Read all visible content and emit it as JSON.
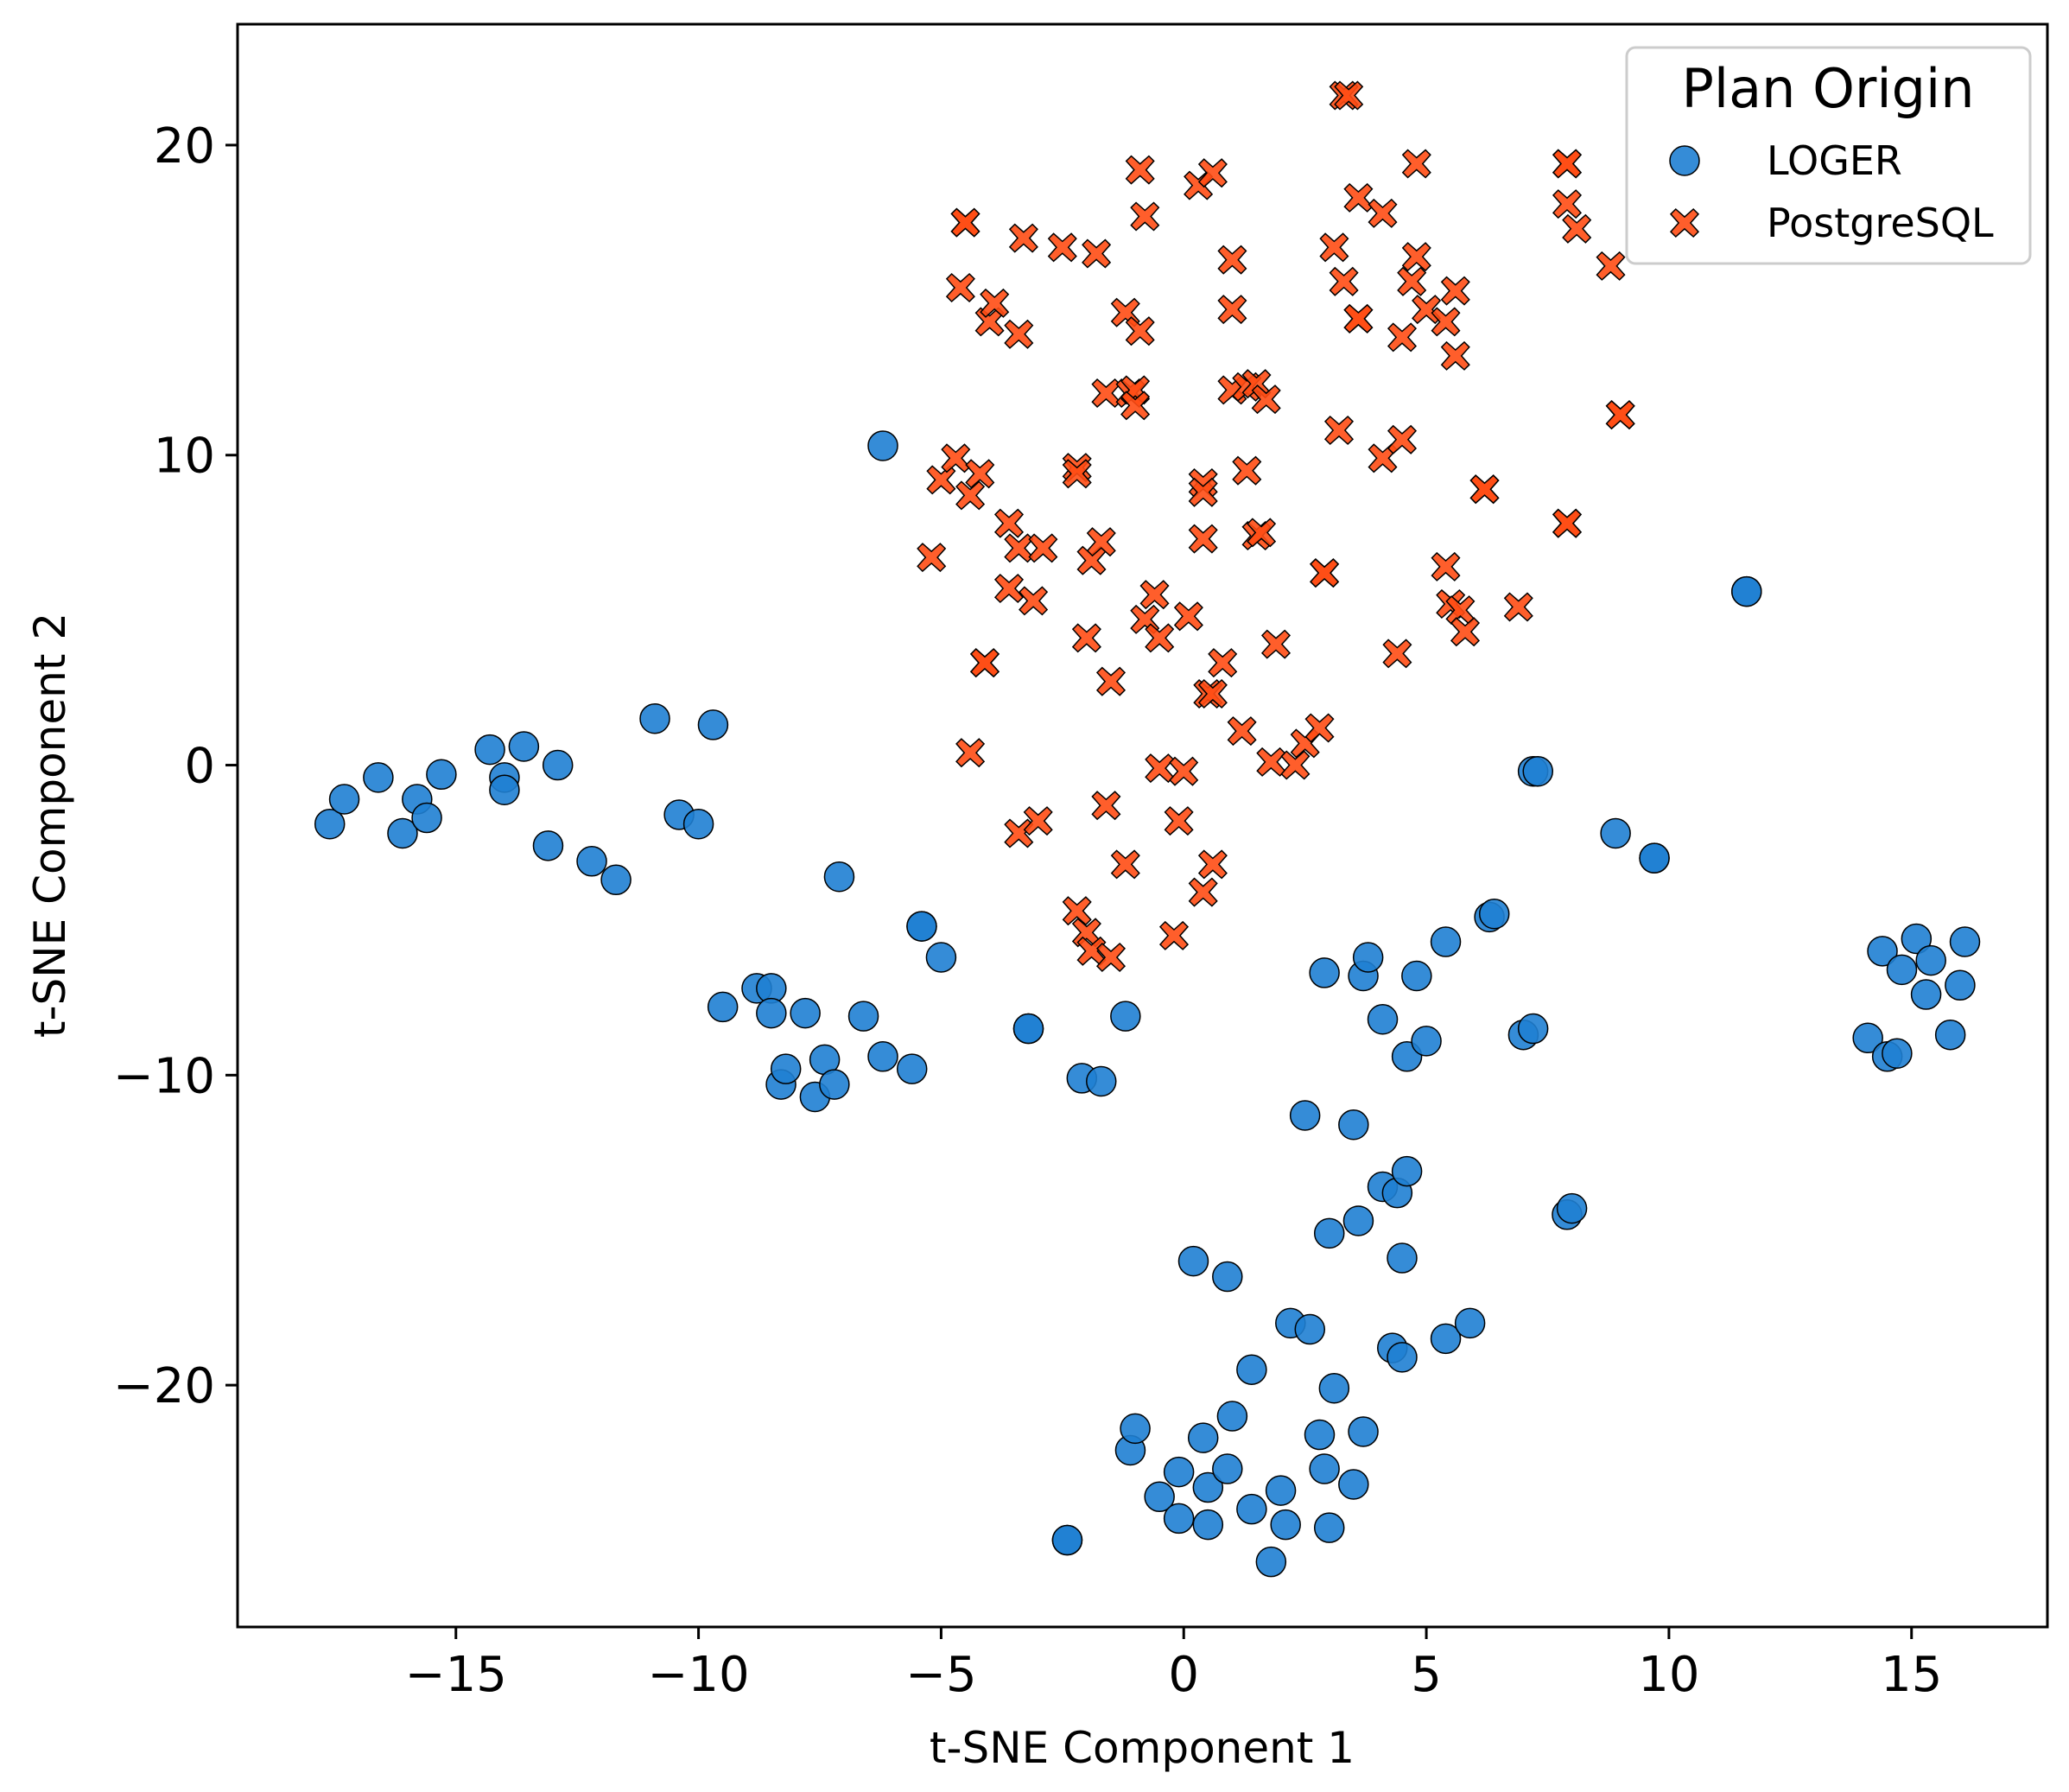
{
  "chart_data": {
    "type": "scatter",
    "xlabel": "t-SNE Component 1",
    "ylabel": "t-SNE Component 2",
    "xlim": [
      -19.5,
      17.8
    ],
    "ylim": [
      -27.8,
      23.9
    ],
    "x_ticks": [
      -15,
      -10,
      -5,
      0,
      5,
      10,
      15
    ],
    "y_ticks": [
      -20,
      -10,
      0,
      10,
      20
    ],
    "x_tick_labels": [
      "−15",
      "−10",
      "−5",
      "0",
      "5",
      "10",
      "15"
    ],
    "y_tick_labels": [
      "−20",
      "−10",
      "0",
      "10",
      "20"
    ],
    "grid": false,
    "legend": {
      "title": "Plan Origin",
      "placement": "top-right",
      "entries": [
        "LOGER",
        "PostgreSQL"
      ]
    },
    "colors": {
      "LOGER": "#1f7fd3",
      "PostgreSQL": "#ff4d14",
      "edge": "#000000"
    },
    "series": [
      {
        "name": "LOGER",
        "marker": "circle",
        "points": [
          [
            -17.6,
            -1.9
          ],
          [
            -17.3,
            -1.1
          ],
          [
            -16.6,
            -0.4
          ],
          [
            -16.1,
            -2.2
          ],
          [
            -15.8,
            -1.1
          ],
          [
            -15.6,
            -1.7
          ],
          [
            -15.3,
            -0.3
          ],
          [
            -14.3,
            0.5
          ],
          [
            -14.0,
            -0.4
          ],
          [
            -14.0,
            -0.8
          ],
          [
            -13.6,
            0.6
          ],
          [
            -13.1,
            -2.6
          ],
          [
            -12.9,
            0.0
          ],
          [
            -12.2,
            -3.1
          ],
          [
            -11.7,
            -3.7
          ],
          [
            -10.9,
            1.5
          ],
          [
            -10.4,
            -1.6
          ],
          [
            -10.0,
            -1.9
          ],
          [
            -9.7,
            1.3
          ],
          [
            -9.5,
            -7.8
          ],
          [
            -8.8,
            -7.2
          ],
          [
            -8.5,
            -7.2
          ],
          [
            -8.5,
            -8.0
          ],
          [
            -8.3,
            -10.3
          ],
          [
            -8.2,
            -9.8
          ],
          [
            -7.8,
            -8.0
          ],
          [
            -7.4,
            -9.5
          ],
          [
            -7.6,
            -10.7
          ],
          [
            -7.2,
            -10.3
          ],
          [
            -7.1,
            -3.6
          ],
          [
            -6.6,
            -8.1
          ],
          [
            -6.2,
            -9.4
          ],
          [
            -5.6,
            -9.8
          ],
          [
            -6.2,
            10.3
          ],
          [
            -5.4,
            -5.2
          ],
          [
            -5.4,
            -5.2
          ],
          [
            -5.0,
            -6.2
          ],
          [
            -3.2,
            -8.5
          ],
          [
            -3.2,
            -8.5
          ],
          [
            -2.1,
            -10.1
          ],
          [
            -1.7,
            -10.2
          ],
          [
            -1.2,
            -8.1
          ],
          [
            -2.4,
            -25.0
          ],
          [
            -2.4,
            -25.0
          ],
          [
            -1.1,
            -22.1
          ],
          [
            -1.0,
            -21.4
          ],
          [
            -0.5,
            -23.6
          ],
          [
            -0.1,
            -22.8
          ],
          [
            -0.1,
            -24.3
          ],
          [
            0.2,
            -16.0
          ],
          [
            0.4,
            -21.7
          ],
          [
            0.5,
            -23.3
          ],
          [
            0.5,
            -24.5
          ],
          [
            0.9,
            -16.5
          ],
          [
            0.9,
            -22.7
          ],
          [
            1.0,
            -21.0
          ],
          [
            1.4,
            -24.0
          ],
          [
            1.4,
            -19.5
          ],
          [
            1.8,
            -25.7
          ],
          [
            2.0,
            -23.4
          ],
          [
            2.1,
            -24.5
          ],
          [
            2.2,
            -18.0
          ],
          [
            2.5,
            -11.3
          ],
          [
            2.6,
            -18.2
          ],
          [
            2.8,
            -21.6
          ],
          [
            2.9,
            -22.7
          ],
          [
            2.9,
            -6.7
          ],
          [
            3.0,
            -24.6
          ],
          [
            3.0,
            -15.1
          ],
          [
            3.1,
            -20.1
          ],
          [
            3.5,
            -23.2
          ],
          [
            3.5,
            -11.6
          ],
          [
            3.6,
            -14.7
          ],
          [
            3.7,
            -6.8
          ],
          [
            3.7,
            -21.5
          ],
          [
            3.8,
            -6.2
          ],
          [
            4.1,
            -8.2
          ],
          [
            4.1,
            -13.6
          ],
          [
            4.4,
            -13.8
          ],
          [
            4.3,
            -18.8
          ],
          [
            4.5,
            -19.1
          ],
          [
            4.5,
            -15.9
          ],
          [
            4.6,
            -13.1
          ],
          [
            4.6,
            -9.4
          ],
          [
            4.8,
            -6.8
          ],
          [
            5.0,
            -8.9
          ],
          [
            5.4,
            -18.5
          ],
          [
            5.4,
            -5.7
          ],
          [
            5.9,
            -18.0
          ],
          [
            6.3,
            -4.9
          ],
          [
            6.4,
            -4.8
          ],
          [
            7.0,
            -8.7
          ],
          [
            7.2,
            -8.5
          ],
          [
            7.2,
            -0.2
          ],
          [
            7.3,
            -0.2
          ],
          [
            7.9,
            -14.5
          ],
          [
            8.0,
            -14.3
          ],
          [
            8.9,
            -2.2
          ],
          [
            9.7,
            -3.0
          ],
          [
            9.7,
            -3.0
          ],
          [
            11.6,
            5.6
          ],
          [
            11.6,
            5.6
          ],
          [
            14.1,
            -8.8
          ],
          [
            14.4,
            -6.0
          ],
          [
            14.5,
            -9.4
          ],
          [
            14.7,
            -9.3
          ],
          [
            14.8,
            -6.6
          ],
          [
            15.1,
            -5.6
          ],
          [
            15.3,
            -7.4
          ],
          [
            15.4,
            -6.3
          ],
          [
            15.8,
            -8.7
          ],
          [
            16.0,
            -7.1
          ],
          [
            16.1,
            -5.7
          ]
        ]
      },
      {
        "name": "PostgreSQL",
        "marker": "x",
        "points": [
          [
            -5.2,
            6.7
          ],
          [
            -5.0,
            9.2
          ],
          [
            -4.7,
            9.9
          ],
          [
            -4.6,
            15.4
          ],
          [
            -4.5,
            17.5
          ],
          [
            -4.5,
            17.5
          ],
          [
            -4.4,
            8.7
          ],
          [
            -4.4,
            0.4
          ],
          [
            -4.2,
            9.4
          ],
          [
            -4.1,
            3.3
          ],
          [
            -4.1,
            3.3
          ],
          [
            -4.0,
            14.3
          ],
          [
            -3.9,
            14.9
          ],
          [
            -3.6,
            7.8
          ],
          [
            -3.6,
            5.7
          ],
          [
            -3.4,
            13.9
          ],
          [
            -3.4,
            7.0
          ],
          [
            -3.4,
            -2.2
          ],
          [
            -3.3,
            17.0
          ],
          [
            -3.1,
            5.3
          ],
          [
            -3.0,
            -1.8
          ],
          [
            -2.9,
            7.0
          ],
          [
            -2.5,
            16.7
          ],
          [
            -2.2,
            9.6
          ],
          [
            -2.2,
            9.4
          ],
          [
            -2.2,
            -4.7
          ],
          [
            -2.0,
            4.1
          ],
          [
            -2.0,
            -5.4
          ],
          [
            -1.9,
            -6.0
          ],
          [
            -1.9,
            6.6
          ],
          [
            -1.8,
            16.5
          ],
          [
            -1.7,
            7.2
          ],
          [
            -1.6,
            12.0
          ],
          [
            -1.6,
            -1.3
          ],
          [
            -1.5,
            2.7
          ],
          [
            -1.5,
            -6.2
          ],
          [
            -1.2,
            14.6
          ],
          [
            -1.2,
            -3.2
          ],
          [
            -1.1,
            12.0
          ],
          [
            -1.0,
            12.1
          ],
          [
            -1.0,
            11.6
          ],
          [
            -0.9,
            19.2
          ],
          [
            -0.9,
            14.0
          ],
          [
            -0.8,
            17.7
          ],
          [
            -0.8,
            4.7
          ],
          [
            -0.6,
            5.5
          ],
          [
            -0.5,
            4.1
          ],
          [
            -0.5,
            -0.1
          ],
          [
            -0.2,
            -5.5
          ],
          [
            -0.1,
            -1.8
          ],
          [
            0.0,
            -0.2
          ],
          [
            0.1,
            4.8
          ],
          [
            0.3,
            18.7
          ],
          [
            0.4,
            9.1
          ],
          [
            0.4,
            8.8
          ],
          [
            0.4,
            7.3
          ],
          [
            0.4,
            -4.1
          ],
          [
            0.5,
            2.3
          ],
          [
            0.6,
            19.1
          ],
          [
            0.6,
            2.3
          ],
          [
            0.6,
            -3.2
          ],
          [
            0.8,
            3.3
          ],
          [
            1.0,
            16.3
          ],
          [
            1.0,
            14.7
          ],
          [
            1.0,
            12.1
          ],
          [
            1.2,
            1.1
          ],
          [
            1.3,
            12.2
          ],
          [
            1.3,
            9.5
          ],
          [
            1.5,
            7.4
          ],
          [
            1.5,
            12.3
          ],
          [
            1.6,
            7.5
          ],
          [
            1.7,
            11.8
          ],
          [
            1.8,
            0.1
          ],
          [
            1.9,
            3.9
          ],
          [
            2.3,
            0.0
          ],
          [
            2.5,
            0.7
          ],
          [
            2.8,
            1.2
          ],
          [
            2.9,
            6.2
          ],
          [
            2.9,
            6.2
          ],
          [
            3.1,
            16.7
          ],
          [
            3.2,
            10.8
          ],
          [
            3.3,
            15.6
          ],
          [
            3.3,
            21.6
          ],
          [
            3.4,
            21.6
          ],
          [
            3.6,
            14.4
          ],
          [
            3.6,
            14.4
          ],
          [
            3.6,
            18.3
          ],
          [
            4.1,
            17.8
          ],
          [
            4.1,
            9.9
          ],
          [
            4.4,
            3.6
          ],
          [
            4.5,
            10.5
          ],
          [
            4.5,
            13.8
          ],
          [
            4.7,
            15.6
          ],
          [
            4.8,
            16.4
          ],
          [
            4.8,
            19.4
          ],
          [
            5.0,
            14.7
          ],
          [
            5.4,
            6.4
          ],
          [
            5.4,
            14.3
          ],
          [
            5.5,
            5.2
          ],
          [
            5.6,
            15.3
          ],
          [
            5.6,
            13.2
          ],
          [
            5.7,
            5.0
          ],
          [
            5.8,
            4.3
          ],
          [
            6.2,
            8.9
          ],
          [
            6.2,
            8.9
          ],
          [
            6.9,
            5.1
          ],
          [
            7.9,
            19.4
          ],
          [
            7.9,
            19.4
          ],
          [
            7.9,
            18.1
          ],
          [
            7.9,
            7.8
          ],
          [
            7.9,
            7.8
          ],
          [
            8.1,
            17.3
          ],
          [
            8.8,
            16.1
          ],
          [
            9.0,
            11.3
          ],
          [
            9.0,
            11.3
          ]
        ]
      }
    ]
  }
}
